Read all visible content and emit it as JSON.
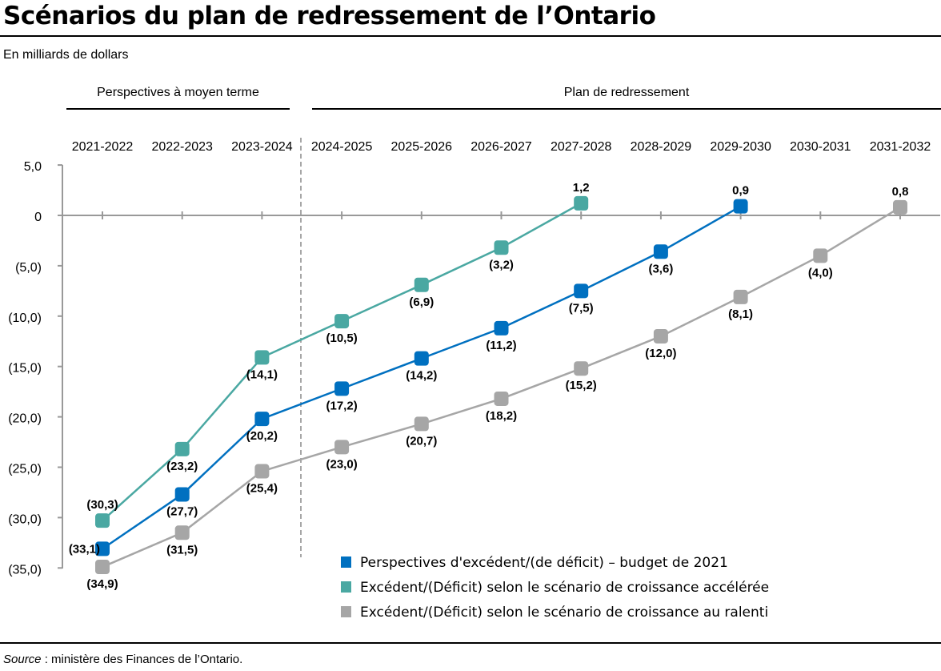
{
  "title": "Scénarios du plan de redressement de l’Ontario",
  "unit": "En milliards de dollars",
  "source_label": "Source",
  "source_text": " : ministère des Finances de l’Ontario.",
  "chart_data": {
    "type": "line",
    "title": "Scénarios du plan de redressement de l’Ontario",
    "ylabel": "En milliards de dollars",
    "categories": [
      "2021-2022",
      "2022-2023",
      "2023-2024",
      "2024-2025",
      "2025-2026",
      "2026-2027",
      "2027-2028",
      "2028-2029",
      "2029-2030",
      "2030-2031",
      "2031-2032"
    ],
    "period_groups": [
      {
        "label": "Perspectives à moyen terme",
        "from": "2021-2022",
        "to": "2023-2024"
      },
      {
        "label": "Plan de redressement",
        "from": "2024-2025",
        "to": "2031-2032"
      }
    ],
    "ylim": [
      -35,
      5
    ],
    "yticks": [
      5,
      0,
      -5,
      -10,
      -15,
      -20,
      -25,
      -30,
      -35
    ],
    "ytick_labels": [
      "5,0",
      "0",
      "(5,0)",
      "(10,0)",
      "(15,0)",
      "(20,0)",
      "(25,0)",
      "(30,0)",
      "(35,0)"
    ],
    "grid": false,
    "legend_position": "bottom-right",
    "series": [
      {
        "name": "Perspectives d'excédent/(de déficit) – budget de 2021",
        "color": "#0070c0",
        "values": [
          -33.1,
          -27.7,
          -20.2,
          -17.2,
          -14.2,
          -11.2,
          -7.5,
          -3.6,
          0.9,
          null,
          null
        ],
        "labels": [
          "(33,1)",
          "(27,7)",
          "(20,2)",
          "(17,2)",
          "(14,2)",
          "(11,2)",
          "(7,5)",
          "(3,6)",
          "0,9",
          null,
          null
        ]
      },
      {
        "name": "Excédent/(Déficit) selon le scénario de croissance accélérée",
        "color": "#4aa8a2",
        "values": [
          -30.3,
          -23.2,
          -14.1,
          -10.5,
          -6.9,
          -3.2,
          1.2,
          null,
          null,
          null,
          null
        ],
        "labels": [
          "(30,3)",
          "(23,2)",
          "(14,1)",
          "(10,5)",
          "(6,9)",
          "(3,2)",
          "1,2",
          null,
          null,
          null,
          null
        ]
      },
      {
        "name": "Excédent/(Déficit) selon le scénario de croissance au ralenti",
        "color": "#a6a6a6",
        "values": [
          -34.9,
          -31.5,
          -25.4,
          -23.0,
          -20.7,
          -18.2,
          -15.2,
          -12.0,
          -8.1,
          -4.0,
          0.8
        ],
        "labels": [
          "(34,9)",
          "(31,5)",
          "(25,4)",
          "(23,0)",
          "(20,7)",
          "(18,2)",
          "(15,2)",
          "(12,0)",
          "(8,1)",
          "(4,0)",
          "0,8"
        ]
      }
    ]
  }
}
